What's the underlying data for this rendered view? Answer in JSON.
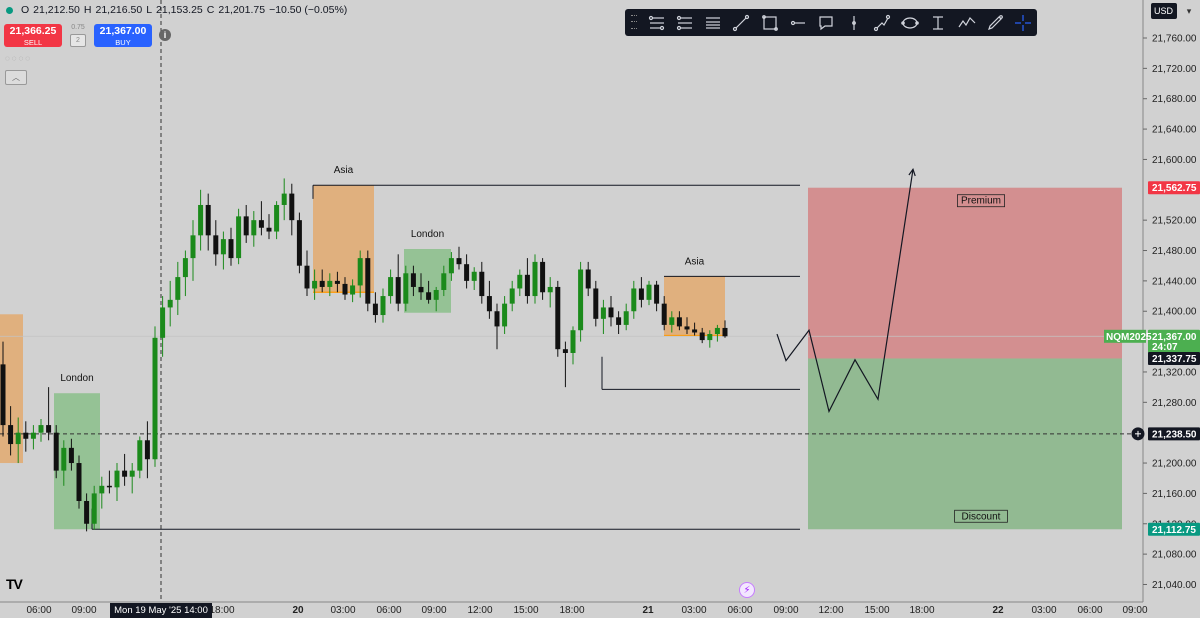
{
  "header": {
    "open_label": "O",
    "open": "21,212.50",
    "high_label": "H",
    "high": "21,216.50",
    "low_label": "L",
    "low": "21,153.25",
    "close_label": "C",
    "close": "21,201.75",
    "change": "−10.50 (−0.05%)"
  },
  "trade": {
    "sell_price": "21,366.25",
    "sell_label": "SELL",
    "buy_price": "21,367.00",
    "buy_label": "BUY",
    "spread": "0.75",
    "qty": "2"
  },
  "price_scale": {
    "currency": "USD",
    "ticks": [
      {
        "v": 21760,
        "label": "21,760.00"
      },
      {
        "v": 21720,
        "label": "21,720.00"
      },
      {
        "v": 21680,
        "label": "21,680.00"
      },
      {
        "v": 21640,
        "label": "21,640.00"
      },
      {
        "v": 21600,
        "label": "21,600.00"
      },
      {
        "v": 21520,
        "label": "21,520.00"
      },
      {
        "v": 21480,
        "label": "21,480.00"
      },
      {
        "v": 21440,
        "label": "21,440.00"
      },
      {
        "v": 21400,
        "label": "21,400.00"
      },
      {
        "v": 21320,
        "label": "21,320.00"
      },
      {
        "v": 21280,
        "label": "21,280.00"
      },
      {
        "v": 21200,
        "label": "21,200.00"
      },
      {
        "v": 21160,
        "label": "21,160.00"
      },
      {
        "v": 21120,
        "label": "21,120.00"
      },
      {
        "v": 21080,
        "label": "21,080.00"
      },
      {
        "v": 21040,
        "label": "21,040.00"
      }
    ],
    "tags": [
      {
        "v": 21562.75,
        "label": "21,562.75",
        "color": "#f23645"
      },
      {
        "v": 21367.0,
        "label": "21,367.00",
        "color": "#4caf50",
        "sub": "24:07",
        "symbol": "NQM2025"
      },
      {
        "v": 21337.75,
        "label": "21,337.75",
        "color": "#131722"
      },
      {
        "v": 21238.5,
        "label": "21,238.50",
        "color": "#131722",
        "crosshair": true
      },
      {
        "v": 21112.75,
        "label": "21,112.75",
        "color": "#089981"
      }
    ]
  },
  "time_axis": {
    "ticks": [
      {
        "label": "06:00",
        "x": 39
      },
      {
        "label": "09:00",
        "x": 84
      },
      {
        "label": "18:00",
        "x": 222
      },
      {
        "label": "20",
        "x": 298,
        "bold": true
      },
      {
        "label": "03:00",
        "x": 343
      },
      {
        "label": "06:00",
        "x": 389
      },
      {
        "label": "09:00",
        "x": 434
      },
      {
        "label": "12:00",
        "x": 480
      },
      {
        "label": "15:00",
        "x": 526
      },
      {
        "label": "18:00",
        "x": 572
      },
      {
        "label": "21",
        "x": 648,
        "bold": true
      },
      {
        "label": "03:00",
        "x": 694
      },
      {
        "label": "06:00",
        "x": 740
      },
      {
        "label": "09:00",
        "x": 786
      },
      {
        "label": "12:00",
        "x": 831
      },
      {
        "label": "15:00",
        "x": 877
      },
      {
        "label": "18:00",
        "x": 922
      },
      {
        "label": "22",
        "x": 998,
        "bold": true
      },
      {
        "label": "03:00",
        "x": 1044
      },
      {
        "label": "06:00",
        "x": 1090
      },
      {
        "label": "09:00",
        "x": 1135
      }
    ],
    "crosshair_label": "Mon 19 May '25",
    "crosshair_time": "14:00"
  },
  "chart_data": {
    "type": "candlestick",
    "symbol": "NQM2025",
    "ylim": [
      21010,
      21790
    ],
    "grid": false,
    "candles": [
      [
        21330,
        21360,
        21235,
        21250
      ],
      [
        21250,
        21275,
        21210,
        21225
      ],
      [
        21225,
        21260,
        21200,
        21240
      ],
      [
        21240,
        21255,
        21215,
        21232
      ],
      [
        21232,
        21250,
        21218,
        21240
      ],
      [
        21240,
        21258,
        21228,
        21250
      ],
      [
        21250,
        21300,
        21230,
        21240
      ],
      [
        21240,
        21250,
        21180,
        21190
      ],
      [
        21190,
        21230,
        21170,
        21220
      ],
      [
        21220,
        21232,
        21190,
        21200
      ],
      [
        21200,
        21210,
        21140,
        21150
      ],
      [
        21150,
        21160,
        21110,
        21120
      ],
      [
        21120,
        21170,
        21112,
        21160
      ],
      [
        21160,
        21182,
        21140,
        21170
      ],
      [
        21170,
        21190,
        21160,
        21168
      ],
      [
        21168,
        21200,
        21150,
        21190
      ],
      [
        21190,
        21212,
        21170,
        21182
      ],
      [
        21182,
        21200,
        21160,
        21190
      ],
      [
        21190,
        21235,
        21180,
        21230
      ],
      [
        21230,
        21255,
        21180,
        21205
      ],
      [
        21205,
        21380,
        21195,
        21365
      ],
      [
        21365,
        21420,
        21340,
        21405
      ],
      [
        21405,
        21440,
        21380,
        21415
      ],
      [
        21415,
        21465,
        21395,
        21445
      ],
      [
        21445,
        21480,
        21420,
        21470
      ],
      [
        21470,
        21520,
        21440,
        21500
      ],
      [
        21500,
        21560,
        21480,
        21540
      ],
      [
        21540,
        21555,
        21480,
        21500
      ],
      [
        21500,
        21520,
        21460,
        21475
      ],
      [
        21475,
        21505,
        21455,
        21495
      ],
      [
        21495,
        21510,
        21460,
        21470
      ],
      [
        21470,
        21535,
        21462,
        21525
      ],
      [
        21525,
        21540,
        21490,
        21500
      ],
      [
        21500,
        21532,
        21485,
        21520
      ],
      [
        21520,
        21545,
        21500,
        21510
      ],
      [
        21510,
        21528,
        21495,
        21505
      ],
      [
        21505,
        21545,
        21495,
        21540
      ],
      [
        21540,
        21575,
        21520,
        21555
      ],
      [
        21555,
        21568,
        21500,
        21520
      ],
      [
        21520,
        21530,
        21450,
        21460
      ],
      [
        21460,
        21480,
        21420,
        21430
      ],
      [
        21430,
        21455,
        21415,
        21440
      ],
      [
        21440,
        21455,
        21425,
        21432
      ],
      [
        21432,
        21450,
        21420,
        21440
      ],
      [
        21440,
        21452,
        21425,
        21436
      ],
      [
        21436,
        21445,
        21415,
        21422
      ],
      [
        21422,
        21442,
        21412,
        21434
      ],
      [
        21434,
        21480,
        21418,
        21470
      ],
      [
        21470,
        21480,
        21400,
        21410
      ],
      [
        21410,
        21425,
        21385,
        21395
      ],
      [
        21395,
        21430,
        21385,
        21420
      ],
      [
        21420,
        21455,
        21410,
        21445
      ],
      [
        21445,
        21475,
        21400,
        21410
      ],
      [
        21410,
        21460,
        21400,
        21450
      ],
      [
        21450,
        21460,
        21420,
        21432
      ],
      [
        21432,
        21450,
        21415,
        21425
      ],
      [
        21425,
        21440,
        21410,
        21415
      ],
      [
        21415,
        21432,
        21400,
        21428
      ],
      [
        21428,
        21460,
        21420,
        21450
      ],
      [
        21450,
        21478,
        21440,
        21470
      ],
      [
        21470,
        21485,
        21455,
        21462
      ],
      [
        21462,
        21475,
        21430,
        21440
      ],
      [
        21440,
        21458,
        21428,
        21452
      ],
      [
        21452,
        21465,
        21410,
        21420
      ],
      [
        21420,
        21440,
        21390,
        21400
      ],
      [
        21400,
        21410,
        21350,
        21380
      ],
      [
        21380,
        21420,
        21370,
        21410
      ],
      [
        21410,
        21440,
        21400,
        21430
      ],
      [
        21430,
        21455,
        21420,
        21448
      ],
      [
        21448,
        21470,
        21410,
        21420
      ],
      [
        21420,
        21475,
        21410,
        21465
      ],
      [
        21465,
        21470,
        21415,
        21425
      ],
      [
        21425,
        21445,
        21405,
        21432
      ],
      [
        21432,
        21440,
        21340,
        21350
      ],
      [
        21350,
        21360,
        21300,
        21345
      ],
      [
        21345,
        21380,
        21330,
        21375
      ],
      [
        21375,
        21465,
        21360,
        21455
      ],
      [
        21455,
        21465,
        21420,
        21430
      ],
      [
        21430,
        21440,
        21380,
        21390
      ],
      [
        21390,
        21415,
        21370,
        21405
      ],
      [
        21405,
        21420,
        21380,
        21392
      ],
      [
        21392,
        21400,
        21370,
        21382
      ],
      [
        21382,
        21410,
        21375,
        21400
      ],
      [
        21400,
        21440,
        21390,
        21430
      ],
      [
        21430,
        21445,
        21405,
        21415
      ],
      [
        21415,
        21440,
        21408,
        21435
      ],
      [
        21435,
        21440,
        21400,
        21410
      ],
      [
        21410,
        21420,
        21375,
        21382
      ],
      [
        21382,
        21400,
        21372,
        21392
      ],
      [
        21392,
        21400,
        21375,
        21380
      ],
      [
        21380,
        21392,
        21370,
        21376
      ],
      [
        21376,
        21385,
        21368,
        21372
      ],
      [
        21372,
        21378,
        21358,
        21362
      ],
      [
        21362,
        21375,
        21352,
        21370
      ],
      [
        21370,
        21382,
        21360,
        21378
      ],
      [
        21378,
        21388,
        21365,
        21367
      ]
    ],
    "levels": [
      {
        "name": "asia-high",
        "price": 21566,
        "x1": 313,
        "x2": 800
      },
      {
        "name": "asia-2-high",
        "price": 21446,
        "x1": 664,
        "x2": 800
      },
      {
        "name": "london-low",
        "price": 21112.75,
        "x1": 92,
        "x2": 800
      },
      {
        "name": "day-low",
        "price": 21297,
        "x1": 602,
        "x2": 800
      },
      {
        "name": "crosshair",
        "price": 21238.5,
        "x1": 0,
        "x2": 1142,
        "dashed": true
      }
    ],
    "session_boxes": [
      {
        "name": "asia",
        "label": "Asia",
        "x1": 313,
        "x2": 374,
        "top": 21566,
        "bottom": 21425,
        "fill": "#e0b07e",
        "base": 21425
      },
      {
        "name": "london",
        "label": "London",
        "x1": 404,
        "x2": 451,
        "top": 21482,
        "bottom": 21398,
        "fill": "#95c295"
      },
      {
        "name": "asia-2",
        "label": "Asia",
        "x1": 664,
        "x2": 725,
        "top": 21446,
        "bottom": 21368,
        "fill": "#e0b07e",
        "base": 21368
      },
      {
        "name": "london-left",
        "label": "London",
        "x1": 54,
        "x2": 100,
        "top": 21292,
        "bottom": 21112.75,
        "fill": "#95c295"
      },
      {
        "name": "prior-asia",
        "label": "",
        "x1": 0,
        "x2": 23,
        "top": 21396,
        "bottom": 21200,
        "fill": "#e0b07e"
      }
    ],
    "zones": [
      {
        "name": "premium-zone",
        "label": "Premium",
        "x1": 808,
        "x2": 1122,
        "top": 21562.75,
        "bottom": 21337.75,
        "fill": "#d38f90"
      },
      {
        "name": "discount-zone",
        "label": "Discount",
        "x1": 808,
        "x2": 1122,
        "top": 21337.75,
        "bottom": 21112.75,
        "fill": "#92ba92"
      }
    ],
    "projection": [
      [
        777,
        21370
      ],
      [
        786,
        21335
      ],
      [
        809,
        21375
      ],
      [
        829,
        21268
      ],
      [
        855,
        21336
      ],
      [
        878,
        21284
      ],
      [
        913,
        21587
      ]
    ]
  }
}
